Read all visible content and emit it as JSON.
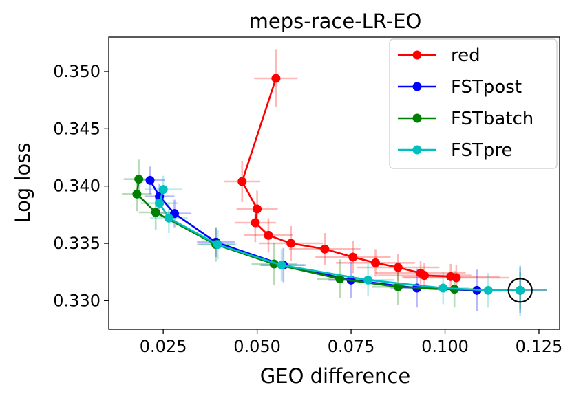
{
  "chart_data": {
    "type": "line",
    "title": "meps-race-LR-EO",
    "xlabel": "GEO difference",
    "ylabel": "Log loss",
    "xlim": [
      0.0105,
      0.1305
    ],
    "ylim": [
      0.3275,
      0.353
    ],
    "xticks": [
      0.025,
      0.05,
      0.075,
      0.1,
      0.125
    ],
    "xtick_labels": [
      "0.025",
      "0.050",
      "0.075",
      "0.100",
      "0.125"
    ],
    "yticks": [
      0.33,
      0.335,
      0.34,
      0.345,
      0.35
    ],
    "ytick_labels": [
      "0.330",
      "0.335",
      "0.340",
      "0.345",
      "0.350"
    ],
    "legend": {
      "position": "top-right",
      "entries": [
        "red",
        "FSTpost",
        "FSTbatch",
        "FSTpre"
      ]
    },
    "highlight": {
      "label": "selected operating point",
      "x": 0.12,
      "y": 0.3309
    },
    "series": [
      {
        "name": "red",
        "color": "#ff0000",
        "x": [
          0.055,
          0.046,
          0.05,
          0.0495,
          0.053,
          0.059,
          0.068,
          0.0755,
          0.0815,
          0.0875,
          0.0935,
          0.0945,
          0.1015,
          0.103
        ],
        "y": [
          0.3494,
          0.3404,
          0.338,
          0.3368,
          0.3357,
          0.335,
          0.3345,
          0.3338,
          0.3333,
          0.3329,
          0.3324,
          0.3322,
          0.3321,
          0.332
        ],
        "xerr": [
          0.0058,
          0.0048,
          0.0055,
          0.0055,
          0.0065,
          0.0085,
          0.0095,
          0.01,
          0.0105,
          0.011,
          0.012,
          0.0125,
          0.013,
          0.014
        ],
        "yerr": [
          0.0025,
          0.0018,
          0.0016,
          0.0017,
          0.0015,
          0.0015,
          0.0014,
          0.0014,
          0.0012,
          0.0012,
          0.0011,
          0.0011,
          0.0011,
          0.0011
        ]
      },
      {
        "name": "FSTpost",
        "color": "#0000ff",
        "x": [
          0.0215,
          0.024,
          0.028,
          0.039,
          0.057,
          0.075,
          0.0925,
          0.1085,
          0.12
        ],
        "y": [
          0.3405,
          0.3391,
          0.3376,
          0.3351,
          0.3331,
          0.3318,
          0.3311,
          0.3309,
          0.3309
        ],
        "xerr": [
          0.004,
          0.004,
          0.0045,
          0.005,
          0.006,
          0.006,
          0.007,
          0.007,
          0.007
        ],
        "yerr": [
          0.0012,
          0.0011,
          0.0012,
          0.0013,
          0.0015,
          0.0016,
          0.0017,
          0.0018,
          0.002
        ]
      },
      {
        "name": "FSTbatch",
        "color": "#008000",
        "x": [
          0.0185,
          0.018,
          0.023,
          0.039,
          0.0545,
          0.072,
          0.0875,
          0.1025,
          0.12
        ],
        "y": [
          0.3406,
          0.3393,
          0.3377,
          0.3349,
          0.3332,
          0.3319,
          0.3312,
          0.331,
          0.3309
        ],
        "xerr": [
          0.004,
          0.004,
          0.0045,
          0.005,
          0.006,
          0.006,
          0.007,
          0.007,
          0.007
        ],
        "yerr": [
          0.0017,
          0.0015,
          0.0015,
          0.0015,
          0.0018,
          0.0017,
          0.0016,
          0.0016,
          0.0016
        ]
      },
      {
        "name": "FSTpre",
        "color": "#00bfbf",
        "x": [
          0.025,
          0.024,
          0.0265,
          0.0395,
          0.0565,
          0.0795,
          0.0995,
          0.1115,
          0.12
        ],
        "y": [
          0.3397,
          0.3385,
          0.3372,
          0.3349,
          0.3331,
          0.3318,
          0.3311,
          0.3309,
          0.3309
        ],
        "xerr": [
          0.005,
          0.005,
          0.005,
          0.005,
          0.006,
          0.007,
          0.007,
          0.007,
          0.007
        ],
        "yerr": [
          0.0012,
          0.0012,
          0.0013,
          0.0013,
          0.0014,
          0.0014,
          0.0014,
          0.0015,
          0.0022
        ]
      }
    ]
  }
}
